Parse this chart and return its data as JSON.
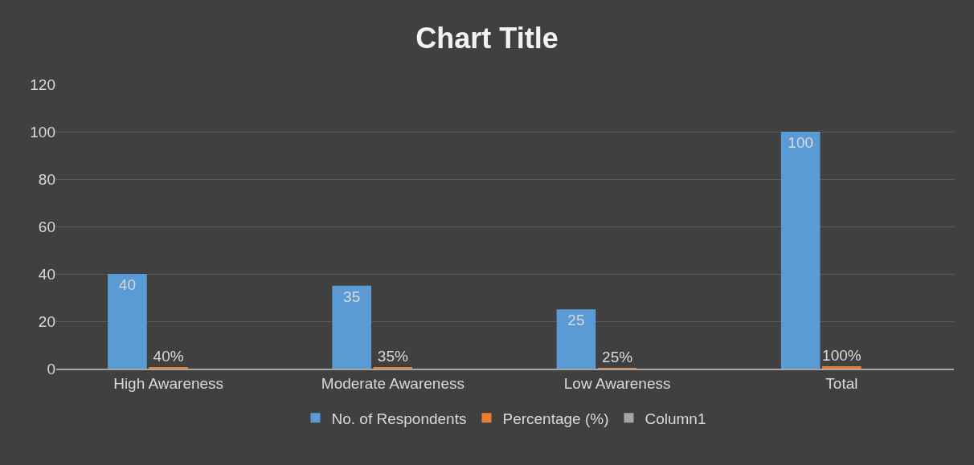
{
  "chart_data": {
    "type": "bar",
    "title": "Chart Title",
    "categories": [
      "High Awareness",
      "Moderate Awareness",
      "Low Awareness",
      "Total"
    ],
    "series": [
      {
        "name": "No. of Respondents",
        "color": "#5b9bd5",
        "values": [
          40,
          35,
          25,
          100
        ],
        "value_labels": [
          "40",
          "35",
          "25",
          "100"
        ]
      },
      {
        "name": "Percentage (%)",
        "color": "#ed7d31",
        "values": [
          0.4,
          0.35,
          0.25,
          1
        ],
        "value_labels": [
          "40%",
          "35%",
          "25%",
          "100%"
        ]
      },
      {
        "name": "Column1",
        "color": "#a5a5a5",
        "values": [
          null,
          null,
          null,
          null
        ]
      }
    ],
    "ylim": [
      0,
      120
    ],
    "yticks": [
      0,
      20,
      40,
      60,
      80,
      100,
      120
    ],
    "grid": "y",
    "legend": "bottom"
  }
}
